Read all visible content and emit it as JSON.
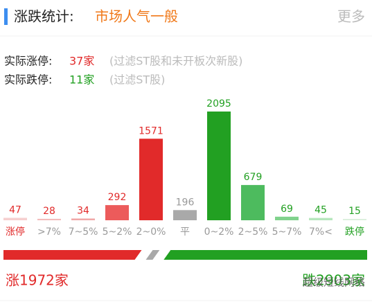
{
  "header": {
    "title": "涨跌统计:",
    "subtitle": "市场人气一般",
    "more": "更多"
  },
  "stats": [
    {
      "label": "实际涨停:",
      "value": "37家",
      "note": "(过滤ST股和未开板次新股)"
    },
    {
      "label": "实际跌停:",
      "value": "11家",
      "note": "(过滤ST股)"
    }
  ],
  "chart_data": {
    "type": "bar",
    "categories": [
      "涨停",
      ">7%",
      "7~5%",
      "5~2%",
      "2~0%",
      "平",
      "0~2%",
      "2~5%",
      "5~7%",
      "7%<",
      "跌停"
    ],
    "values": [
      47,
      28,
      34,
      292,
      1571,
      196,
      2095,
      679,
      69,
      45,
      15
    ],
    "colors": [
      "#f6cfcf",
      "#f3bcbc",
      "#f0a8a8",
      "#ec5b5b",
      "#e12a2a",
      "#a9a9a9",
      "#22a022",
      "#4dbb5e",
      "#80d28c",
      "#b6e6bd",
      "#dcf0de"
    ]
  },
  "footer": {
    "up": "涨1972家",
    "down": "跌2903家",
    "watermark": "超级短线网络"
  }
}
